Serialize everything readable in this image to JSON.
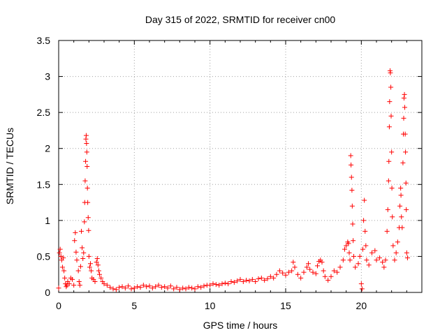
{
  "chart_data": {
    "type": "scatter",
    "title": "Day 315 of 2022, SRMTID for receiver cn00",
    "xlabel": "GPS time / hours",
    "ylabel": "SRMTID / TECUs",
    "xlim": [
      0,
      24
    ],
    "ylim": [
      0,
      3.5
    ],
    "xticks": [
      0,
      5,
      10,
      15,
      20
    ],
    "xtick_labels": [
      "0",
      "5",
      "10",
      "15",
      "20"
    ],
    "yticks": [
      0,
      0.5,
      1,
      1.5,
      2,
      2.5,
      3,
      3.5
    ],
    "ytick_labels": [
      "0",
      "0.5",
      "1",
      "1.5",
      "2",
      "2.5",
      "3",
      "3.5"
    ],
    "grid": true,
    "marker": "plus",
    "series": [
      {
        "name": "SRMTID",
        "color": "#ff0000",
        "points": [
          [
            0.0,
            0.06
          ],
          [
            0.05,
            0.55
          ],
          [
            0.1,
            0.6
          ],
          [
            0.15,
            0.5
          ],
          [
            0.2,
            0.45
          ],
          [
            0.25,
            0.35
          ],
          [
            0.3,
            0.48
          ],
          [
            0.35,
            0.3
          ],
          [
            0.4,
            0.2
          ],
          [
            0.45,
            0.12
          ],
          [
            0.5,
            0.08
          ],
          [
            0.55,
            0.1
          ],
          [
            0.6,
            0.15
          ],
          [
            0.7,
            0.12
          ],
          [
            0.8,
            0.2
          ],
          [
            0.9,
            0.18
          ],
          [
            1.0,
            0.1
          ],
          [
            1.05,
            0.72
          ],
          [
            1.1,
            0.83
          ],
          [
            1.15,
            0.56
          ],
          [
            1.2,
            0.45
          ],
          [
            1.3,
            0.3
          ],
          [
            1.35,
            0.15
          ],
          [
            1.4,
            0.1
          ],
          [
            1.45,
            0.36
          ],
          [
            1.5,
            0.85
          ],
          [
            1.55,
            0.62
          ],
          [
            1.6,
            0.47
          ],
          [
            1.65,
            0.55
          ],
          [
            1.7,
            0.98
          ],
          [
            1.72,
            1.25
          ],
          [
            1.75,
            1.55
          ],
          [
            1.78,
            1.82
          ],
          [
            1.8,
            2.13
          ],
          [
            1.82,
            2.18
          ],
          [
            1.84,
            2.07
          ],
          [
            1.86,
            1.95
          ],
          [
            1.88,
            1.75
          ],
          [
            1.9,
            1.45
          ],
          [
            1.92,
            1.25
          ],
          [
            1.95,
            1.04
          ],
          [
            1.98,
            0.86
          ],
          [
            2.0,
            0.5
          ],
          [
            2.05,
            0.35
          ],
          [
            2.1,
            0.4
          ],
          [
            2.15,
            0.3
          ],
          [
            2.2,
            0.2
          ],
          [
            2.3,
            0.18
          ],
          [
            2.4,
            0.15
          ],
          [
            2.5,
            0.42
          ],
          [
            2.55,
            0.47
          ],
          [
            2.6,
            0.38
          ],
          [
            2.65,
            0.3
          ],
          [
            2.7,
            0.25
          ],
          [
            2.8,
            0.2
          ],
          [
            2.9,
            0.15
          ],
          [
            3.0,
            0.12
          ],
          [
            3.2,
            0.1
          ],
          [
            3.4,
            0.07
          ],
          [
            3.6,
            0.05
          ],
          [
            3.8,
            0.04
          ],
          [
            4.0,
            0.07
          ],
          [
            4.2,
            0.08
          ],
          [
            4.4,
            0.06
          ],
          [
            4.6,
            0.09
          ],
          [
            4.8,
            0.05
          ],
          [
            5.0,
            0.06
          ],
          [
            5.2,
            0.08
          ],
          [
            5.4,
            0.07
          ],
          [
            5.6,
            0.1
          ],
          [
            5.8,
            0.08
          ],
          [
            6.0,
            0.09
          ],
          [
            6.2,
            0.06
          ],
          [
            6.4,
            0.08
          ],
          [
            6.6,
            0.1
          ],
          [
            6.8,
            0.07
          ],
          [
            7.0,
            0.08
          ],
          [
            7.2,
            0.06
          ],
          [
            7.4,
            0.09
          ],
          [
            7.6,
            0.05
          ],
          [
            7.8,
            0.07
          ],
          [
            8.0,
            0.04
          ],
          [
            8.2,
            0.06
          ],
          [
            8.4,
            0.05
          ],
          [
            8.6,
            0.07
          ],
          [
            8.8,
            0.06
          ],
          [
            9.0,
            0.05
          ],
          [
            9.2,
            0.08
          ],
          [
            9.4,
            0.07
          ],
          [
            9.6,
            0.09
          ],
          [
            9.8,
            0.1
          ],
          [
            10.0,
            0.1
          ],
          [
            10.2,
            0.12
          ],
          [
            10.4,
            0.11
          ],
          [
            10.6,
            0.1
          ],
          [
            10.8,
            0.12
          ],
          [
            11.0,
            0.13
          ],
          [
            11.2,
            0.12
          ],
          [
            11.4,
            0.15
          ],
          [
            11.6,
            0.14
          ],
          [
            11.8,
            0.16
          ],
          [
            12.0,
            0.18
          ],
          [
            12.2,
            0.15
          ],
          [
            12.4,
            0.17
          ],
          [
            12.6,
            0.16
          ],
          [
            12.8,
            0.18
          ],
          [
            13.0,
            0.15
          ],
          [
            13.2,
            0.19
          ],
          [
            13.4,
            0.2
          ],
          [
            13.6,
            0.17
          ],
          [
            13.8,
            0.19
          ],
          [
            14.0,
            0.22
          ],
          [
            14.2,
            0.2
          ],
          [
            14.4,
            0.25
          ],
          [
            14.6,
            0.3
          ],
          [
            14.8,
            0.27
          ],
          [
            15.0,
            0.24
          ],
          [
            15.2,
            0.28
          ],
          [
            15.4,
            0.3
          ],
          [
            15.5,
            0.42
          ],
          [
            15.6,
            0.35
          ],
          [
            15.8,
            0.25
          ],
          [
            16.0,
            0.2
          ],
          [
            16.2,
            0.28
          ],
          [
            16.4,
            0.35
          ],
          [
            16.5,
            0.4
          ],
          [
            16.6,
            0.32
          ],
          [
            16.8,
            0.28
          ],
          [
            17.0,
            0.26
          ],
          [
            17.1,
            0.37
          ],
          [
            17.2,
            0.43
          ],
          [
            17.3,
            0.45
          ],
          [
            17.4,
            0.42
          ],
          [
            17.5,
            0.3
          ],
          [
            17.6,
            0.22
          ],
          [
            17.8,
            0.17
          ],
          [
            18.0,
            0.22
          ],
          [
            18.2,
            0.3
          ],
          [
            18.4,
            0.28
          ],
          [
            18.6,
            0.35
          ],
          [
            18.8,
            0.45
          ],
          [
            18.9,
            0.6
          ],
          [
            19.0,
            0.65
          ],
          [
            19.1,
            0.7
          ],
          [
            19.15,
            0.68
          ],
          [
            19.2,
            0.55
          ],
          [
            19.25,
            0.45
          ],
          [
            19.3,
            1.9
          ],
          [
            19.32,
            1.77
          ],
          [
            19.35,
            1.6
          ],
          [
            19.38,
            1.42
          ],
          [
            19.4,
            1.2
          ],
          [
            19.43,
            0.95
          ],
          [
            19.46,
            0.72
          ],
          [
            19.5,
            0.5
          ],
          [
            19.6,
            0.35
          ],
          [
            19.8,
            0.4
          ],
          [
            19.9,
            0.5
          ],
          [
            20.0,
            0.12
          ],
          [
            20.05,
            0.05
          ],
          [
            20.1,
            0.6
          ],
          [
            20.15,
            1.0
          ],
          [
            20.2,
            1.28
          ],
          [
            20.25,
            0.85
          ],
          [
            20.3,
            0.65
          ],
          [
            20.35,
            0.45
          ],
          [
            20.5,
            0.38
          ],
          [
            20.7,
            0.55
          ],
          [
            20.9,
            0.58
          ],
          [
            21.0,
            0.45
          ],
          [
            21.2,
            0.48
          ],
          [
            21.4,
            0.42
          ],
          [
            21.5,
            0.35
          ],
          [
            21.6,
            0.45
          ],
          [
            21.7,
            0.85
          ],
          [
            21.75,
            1.15
          ],
          [
            21.8,
            1.55
          ],
          [
            21.82,
            1.82
          ],
          [
            21.85,
            2.3
          ],
          [
            21.87,
            2.65
          ],
          [
            21.9,
            3.08
          ],
          [
            21.92,
            3.05
          ],
          [
            21.95,
            2.85
          ],
          [
            21.97,
            2.45
          ],
          [
            22.0,
            1.95
          ],
          [
            22.02,
            1.45
          ],
          [
            22.05,
            1.05
          ],
          [
            22.1,
            0.65
          ],
          [
            22.2,
            0.45
          ],
          [
            22.3,
            0.55
          ],
          [
            22.4,
            0.7
          ],
          [
            22.5,
            0.9
          ],
          [
            22.55,
            1.2
          ],
          [
            22.6,
            1.45
          ],
          [
            22.62,
            1.35
          ],
          [
            22.65,
            1.05
          ],
          [
            22.7,
            0.9
          ],
          [
            22.75,
            1.8
          ],
          [
            22.78,
            2.2
          ],
          [
            22.8,
            2.42
          ],
          [
            22.82,
            2.7
          ],
          [
            22.85,
            2.75
          ],
          [
            22.87,
            2.57
          ],
          [
            22.9,
            2.2
          ],
          [
            22.92,
            1.95
          ],
          [
            22.95,
            1.52
          ],
          [
            22.97,
            1.15
          ],
          [
            23.0,
            0.55
          ],
          [
            23.05,
            0.48
          ]
        ]
      }
    ]
  }
}
